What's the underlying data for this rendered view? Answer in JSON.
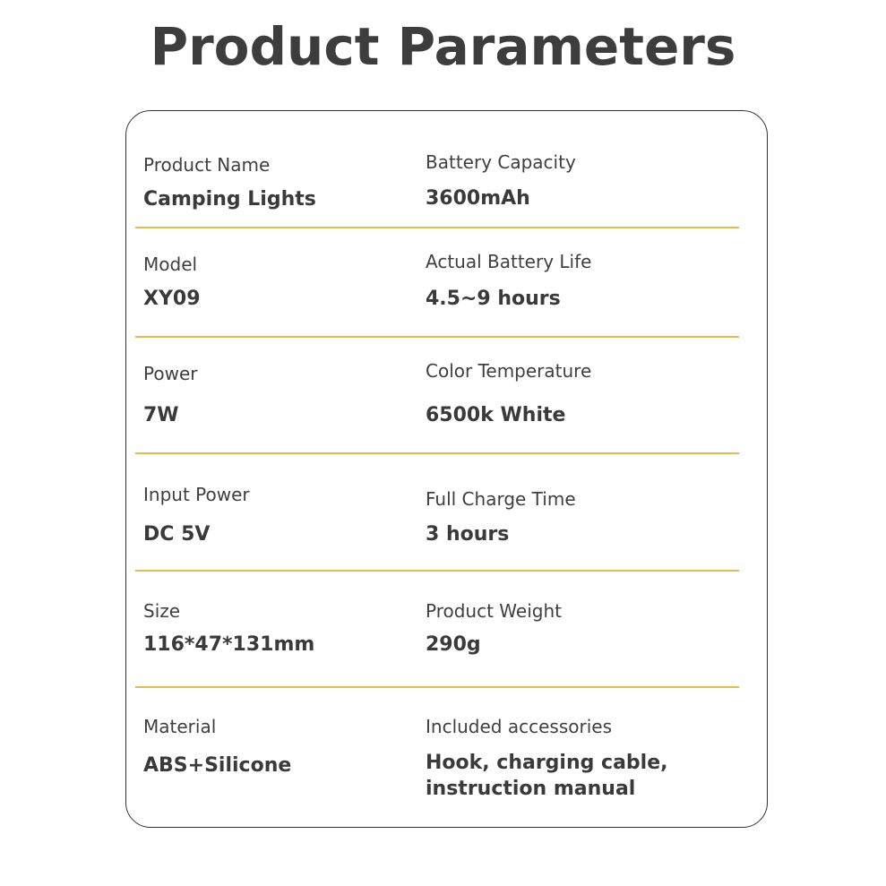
{
  "title": "Product Parameters",
  "divider_color": "#e2bd4a",
  "rows": [
    {
      "left": {
        "label": "Product Name",
        "value": "Camping Lights"
      },
      "right": {
        "label": "Battery Capacity",
        "value": "3600mAh"
      }
    },
    {
      "left": {
        "label": "Model",
        "value": "XY09"
      },
      "right": {
        "label": "Actual Battery Life",
        "value": "4.5~9 hours"
      }
    },
    {
      "left": {
        "label": "Power",
        "value": "7W"
      },
      "right": {
        "label": "Color Temperature",
        "value": "6500k White"
      }
    },
    {
      "left": {
        "label": "Input Power",
        "value": "DC 5V"
      },
      "right": {
        "label": "Full Charge Time",
        "value": "3 hours"
      }
    },
    {
      "left": {
        "label": "Size",
        "value": "116*47*131mm"
      },
      "right": {
        "label": "Product Weight",
        "value": "290g"
      }
    },
    {
      "left": {
        "label": "Material",
        "value": "ABS+Silicone"
      },
      "right": {
        "label": "Included accessories",
        "value_line1": "Hook, charging cable,",
        "value_line2": "instruction manual"
      }
    }
  ]
}
